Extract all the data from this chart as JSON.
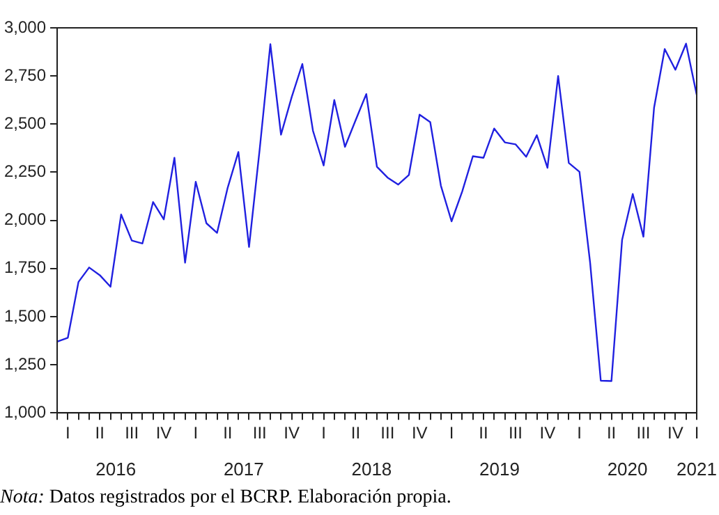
{
  "chart_data": {
    "type": "line",
    "legend": false,
    "grid": false,
    "marker": "none",
    "line_style": "solid",
    "categories": [
      null,
      "I",
      null,
      null,
      "II",
      null,
      null,
      "III",
      null,
      null,
      "IV",
      null,
      null,
      "I",
      null,
      null,
      "II",
      null,
      null,
      "III",
      null,
      null,
      "IV",
      null,
      null,
      "I",
      null,
      null,
      "II",
      null,
      null,
      "III",
      null,
      null,
      "IV",
      null,
      null,
      "I",
      null,
      null,
      "II",
      null,
      null,
      "III",
      null,
      null,
      "IV",
      null,
      null,
      "I",
      null,
      null,
      "II",
      null,
      null,
      "III",
      null,
      null,
      "IV",
      null,
      "I"
    ],
    "series": [
      {
        "color": "#2020e0",
        "values": [
          1370,
          1390,
          1680,
          1755,
          1715,
          1655,
          2030,
          1895,
          1880,
          2095,
          2005,
          2325,
          1780,
          2200,
          1985,
          1935,
          2170,
          2355,
          1862,
          2370,
          2915,
          2445,
          2640,
          2812,
          2465,
          2285,
          2625,
          2382,
          2520,
          2656,
          2278,
          2222,
          2186,
          2236,
          2549,
          2510,
          2180,
          1995,
          2150,
          2333,
          2325,
          2477,
          2405,
          2395,
          2330,
          2442,
          2273,
          2750,
          2298,
          2252,
          1780,
          1167,
          1165,
          1898,
          2137,
          1915,
          2585,
          2890,
          2782,
          2918,
          2652
        ]
      }
    ],
    "ylim": [
      1000,
      3000
    ],
    "yticks": [
      {
        "value": 1000,
        "label": "1,000"
      },
      {
        "value": 1250,
        "label": "1,250"
      },
      {
        "value": 1500,
        "label": "1,500"
      },
      {
        "value": 1750,
        "label": "1,750"
      },
      {
        "value": 2000,
        "label": "2,000"
      },
      {
        "value": 2250,
        "label": "2,250"
      },
      {
        "value": 2500,
        "label": "2,500"
      },
      {
        "value": 2750,
        "label": "2,750"
      },
      {
        "value": 3000,
        "label": "3,000"
      }
    ],
    "annotations": [
      "2016",
      "2017",
      "2018",
      "2019",
      "2020",
      "2021",
      "Nota: Datos registrados por el BCRP. Elaboración propia."
    ]
  }
}
